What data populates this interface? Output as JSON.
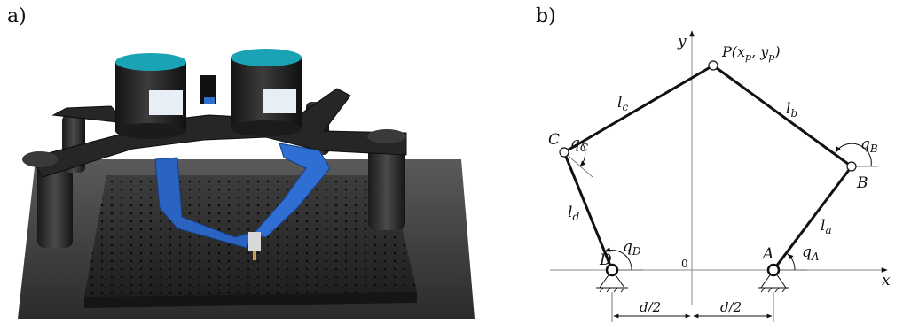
{
  "panel_a_label": "a)",
  "panel_b_label": "b)",
  "diagram": {
    "axis_y_label": "y",
    "axis_x_label": "x",
    "origin_label": "0",
    "point_p": "P(x",
    "point_p_sub_x": "p",
    "point_p_mid": ", y",
    "point_p_sub_y": "p",
    "point_p_close": ")",
    "point_a": "A",
    "point_b": "B",
    "point_c": "C",
    "point_d": "D",
    "link_a": "l",
    "link_a_sub": "a",
    "link_b": "l",
    "link_b_sub": "b",
    "link_c": "l",
    "link_c_sub": "c",
    "link_d": "l",
    "link_d_sub": "d",
    "angle_a": "q",
    "angle_a_sub": "A",
    "angle_b": "q",
    "angle_b_sub": "B",
    "angle_c": "q",
    "angle_c_sub": "C",
    "angle_d": "q",
    "angle_d_sub": "D",
    "dim_left": "d/2",
    "dim_right": "d/2"
  }
}
